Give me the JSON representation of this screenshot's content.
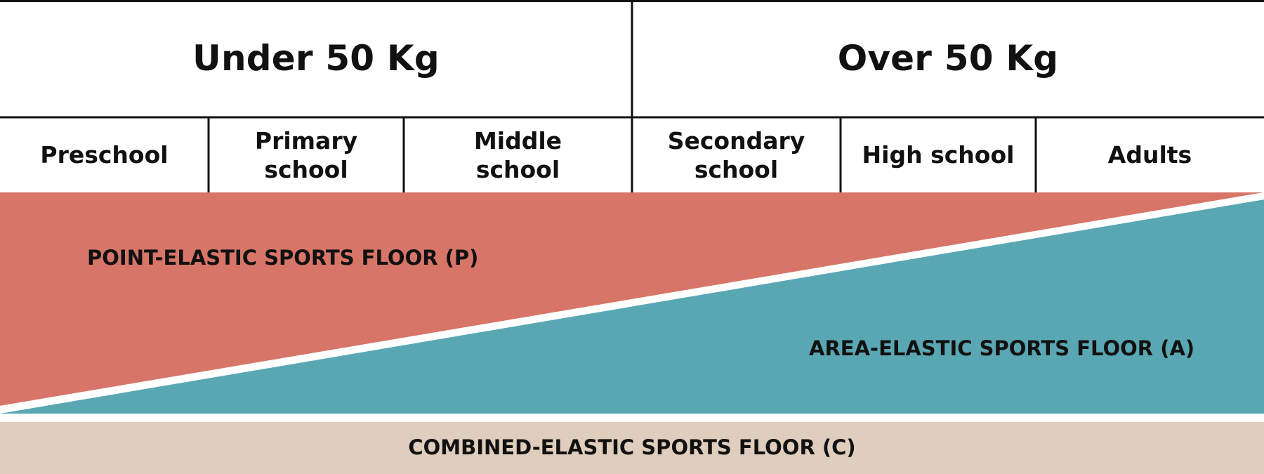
{
  "weight_groups": [
    {
      "label": "Under 50 Kg"
    },
    {
      "label": "Over 50 Kg"
    }
  ],
  "age_groups": [
    {
      "label": "Preschool"
    },
    {
      "label": "Primary school"
    },
    {
      "label": "Middle school"
    },
    {
      "label": "Secondary school"
    },
    {
      "label": "High school"
    },
    {
      "label": "Adults"
    }
  ],
  "floors": {
    "point": {
      "label": "POINT-ELASTIC SPORTS FLOOR (P)",
      "color": "#d77568"
    },
    "area": {
      "label": "AREA-ELASTIC SPORTS FLOOR (A)",
      "color": "#5aa7b4"
    },
    "combined": {
      "label": "COMBINED-ELASTIC SPORTS FLOOR (C)",
      "color": "#dfcebd"
    }
  },
  "colors": {
    "line": "#111111",
    "background": "#ffffff",
    "text": "#111111"
  }
}
